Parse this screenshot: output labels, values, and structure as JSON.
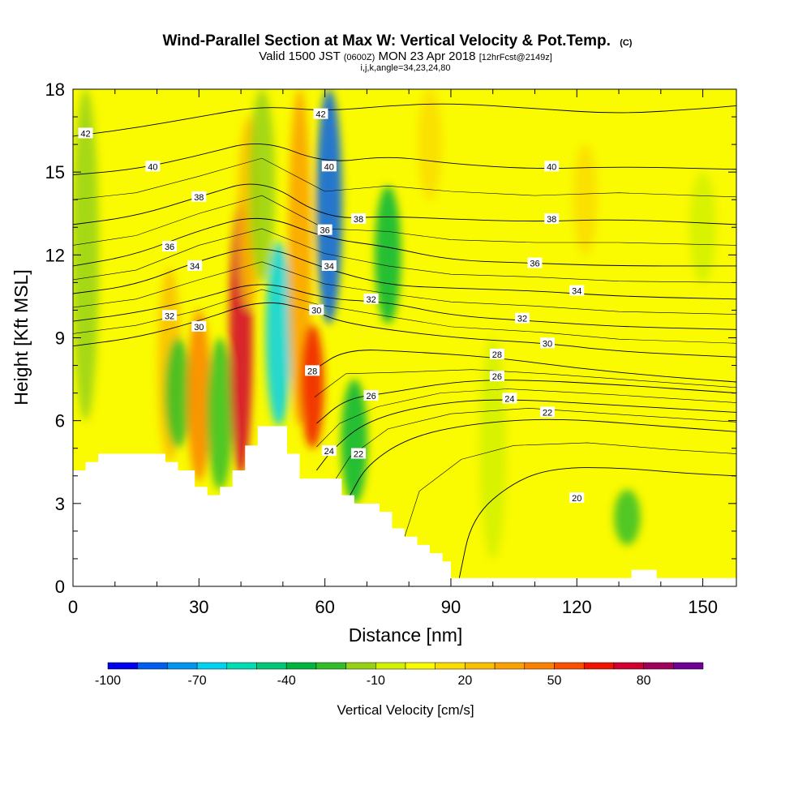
{
  "header": {
    "title": "Wind-Parallel Section at Max W: Vertical Velocity & Pot.Temp.",
    "copyright": "(C)",
    "valid_prefix": "Valid 1500 JST",
    "valid_utc": "(0600Z)",
    "valid_date": "MON 23 Apr 2018",
    "forecast": "[12hrFcst@2149z]",
    "indices": "i,j,k,angle=34,23,24,80"
  },
  "chart_data": {
    "type": "heatmap",
    "xlabel": "Distance [nm]",
    "ylabel": "Height [Kft MSL]",
    "xlim": [
      0,
      158
    ],
    "ylim": [
      0,
      18
    ],
    "x_ticks": [
      0,
      30,
      60,
      90,
      120,
      150
    ],
    "y_ticks": [
      0,
      3,
      6,
      9,
      12,
      15,
      18
    ],
    "colorbar": {
      "label": "Vertical Velocity [cm/s]",
      "tick_labels": [
        "-100",
        "-70",
        "-40",
        "-10",
        "20",
        "50",
        "80"
      ],
      "tick_values": [
        -100,
        -70,
        -40,
        -10,
        20,
        50,
        80
      ],
      "bins": [
        {
          "min": -100,
          "max": -90,
          "color": "#0000ee"
        },
        {
          "min": -90,
          "max": -80,
          "color": "#005ff0"
        },
        {
          "min": -80,
          "max": -70,
          "color": "#0096f0"
        },
        {
          "min": -70,
          "max": -60,
          "color": "#00d2f0"
        },
        {
          "min": -60,
          "max": -50,
          "color": "#00dcb4"
        },
        {
          "min": -50,
          "max": -40,
          "color": "#00c878"
        },
        {
          "min": -40,
          "max": -30,
          "color": "#00b43c"
        },
        {
          "min": -30,
          "max": -20,
          "color": "#32be28"
        },
        {
          "min": -20,
          "max": -10,
          "color": "#96d214"
        },
        {
          "min": -10,
          "max": 0,
          "color": "#d2f000"
        },
        {
          "min": 0,
          "max": 10,
          "color": "#fafa00"
        },
        {
          "min": 10,
          "max": 20,
          "color": "#fadc00"
        },
        {
          "min": 20,
          "max": 30,
          "color": "#fabe00"
        },
        {
          "min": 30,
          "max": 40,
          "color": "#faa000"
        },
        {
          "min": 40,
          "max": 50,
          "color": "#fa8200"
        },
        {
          "min": 50,
          "max": 60,
          "color": "#fa5000"
        },
        {
          "min": 60,
          "max": 70,
          "color": "#f01400"
        },
        {
          "min": 70,
          "max": 80,
          "color": "#d20032"
        },
        {
          "min": 80,
          "max": 90,
          "color": "#a0005a"
        },
        {
          "min": 90,
          "max": 100,
          "color": "#6e0096"
        }
      ]
    },
    "velocity_features": [
      {
        "x": 3,
        "y_min": 6.0,
        "y_max": 18,
        "value": -20
      },
      {
        "x": 23,
        "y_min": 4.5,
        "y_max": 11.5,
        "value": 25
      },
      {
        "x": 25,
        "y_min": 5.0,
        "y_max": 9.0,
        "value": -25
      },
      {
        "x": 30,
        "y_min": 3.8,
        "y_max": 10.0,
        "value": 45
      },
      {
        "x": 35,
        "y_min": 3.5,
        "y_max": 9.0,
        "value": -25
      },
      {
        "x": 40,
        "y_min": 4.0,
        "y_max": 14.0,
        "value": 75
      },
      {
        "x": 42,
        "y_min": 10.0,
        "y_max": 17.0,
        "value": 25
      },
      {
        "x": 45,
        "y_min": 11.0,
        "y_max": 18,
        "value": -15
      },
      {
        "x": 49,
        "y_min": 5.8,
        "y_max": 12.5,
        "value": -65
      },
      {
        "x": 54,
        "y_min": 5.8,
        "y_max": 18,
        "value": 35
      },
      {
        "x": 57,
        "y_min": 5.0,
        "y_max": 9.5,
        "value": 65
      },
      {
        "x": 61,
        "y_min": 9.5,
        "y_max": 18,
        "value": -90
      },
      {
        "x": 67,
        "y_min": 3.0,
        "y_max": 7.5,
        "value": -35
      },
      {
        "x": 75,
        "y_min": 9.5,
        "y_max": 14.5,
        "value": -35
      },
      {
        "x": 85,
        "y_min": 14.0,
        "y_max": 18,
        "value": 15
      },
      {
        "x": 100,
        "y_min": 1.0,
        "y_max": 9.0,
        "value": -5
      },
      {
        "x": 122,
        "y_min": 12.0,
        "y_max": 16.0,
        "value": 15
      },
      {
        "x": 132,
        "y_min": 1.5,
        "y_max": 3.5,
        "value": -25
      },
      {
        "x": 150,
        "y_min": 11.0,
        "y_max": 15.0,
        "value": -8
      }
    ],
    "terrain": [
      {
        "x": 0,
        "height": 4.2
      },
      {
        "x": 3,
        "height": 4.2
      },
      {
        "x": 3,
        "height": 4.5
      },
      {
        "x": 6,
        "height": 4.5
      },
      {
        "x": 6,
        "height": 4.8
      },
      {
        "x": 22,
        "height": 4.8
      },
      {
        "x": 22,
        "height": 4.5
      },
      {
        "x": 25,
        "height": 4.5
      },
      {
        "x": 25,
        "height": 4.2
      },
      {
        "x": 29,
        "height": 4.2
      },
      {
        "x": 29,
        "height": 3.6
      },
      {
        "x": 32,
        "height": 3.6
      },
      {
        "x": 32,
        "height": 3.3
      },
      {
        "x": 35,
        "height": 3.3
      },
      {
        "x": 35,
        "height": 3.6
      },
      {
        "x": 38,
        "height": 3.6
      },
      {
        "x": 38,
        "height": 4.2
      },
      {
        "x": 41,
        "height": 4.2
      },
      {
        "x": 41,
        "height": 5.1
      },
      {
        "x": 44,
        "height": 5.1
      },
      {
        "x": 44,
        "height": 5.8
      },
      {
        "x": 51,
        "height": 5.8
      },
      {
        "x": 51,
        "height": 4.8
      },
      {
        "x": 54,
        "height": 4.8
      },
      {
        "x": 54,
        "height": 3.9
      },
      {
        "x": 64,
        "height": 3.9
      },
      {
        "x": 64,
        "height": 3.3
      },
      {
        "x": 67,
        "height": 3.3
      },
      {
        "x": 67,
        "height": 3.0
      },
      {
        "x": 73,
        "height": 3.0
      },
      {
        "x": 73,
        "height": 2.7
      },
      {
        "x": 76,
        "height": 2.7
      },
      {
        "x": 76,
        "height": 2.1
      },
      {
        "x": 79,
        "height": 2.1
      },
      {
        "x": 79,
        "height": 1.8
      },
      {
        "x": 82,
        "height": 1.8
      },
      {
        "x": 82,
        "height": 1.5
      },
      {
        "x": 85,
        "height": 1.5
      },
      {
        "x": 85,
        "height": 1.2
      },
      {
        "x": 88,
        "height": 1.2
      },
      {
        "x": 88,
        "height": 0.9
      },
      {
        "x": 90,
        "height": 0.9
      },
      {
        "x": 90,
        "height": 0.3
      },
      {
        "x": 133,
        "height": 0.3
      },
      {
        "x": 133,
        "height": 0.6
      },
      {
        "x": 139,
        "height": 0.6
      },
      {
        "x": 139,
        "height": 0.3
      },
      {
        "x": 158,
        "height": 0.3
      }
    ],
    "theta_contours": [
      {
        "level": 42,
        "points": [
          [
            0,
            16.3
          ],
          [
            15,
            16.6
          ],
          [
            30,
            17.0
          ],
          [
            45,
            17.4
          ],
          [
            60,
            17.2
          ],
          [
            75,
            17.4
          ],
          [
            90,
            17.5
          ],
          [
            110,
            17.3
          ],
          [
            130,
            17.1
          ],
          [
            150,
            17.3
          ],
          [
            158,
            17.4
          ]
        ]
      },
      {
        "level": 40,
        "points": [
          [
            0,
            14.9
          ],
          [
            15,
            15.1
          ],
          [
            30,
            15.6
          ],
          [
            45,
            16.2
          ],
          [
            60,
            15.3
          ],
          [
            75,
            15.6
          ],
          [
            90,
            15.3
          ],
          [
            110,
            15.1
          ],
          [
            130,
            15.2
          ],
          [
            158,
            15.1
          ]
        ]
      },
      {
        "level": 38,
        "points": [
          [
            0,
            13.1
          ],
          [
            15,
            13.4
          ],
          [
            30,
            14.1
          ],
          [
            45,
            14.8
          ],
          [
            60,
            13.3
          ],
          [
            75,
            13.4
          ],
          [
            90,
            13.3
          ],
          [
            110,
            13.2
          ],
          [
            130,
            13.3
          ],
          [
            158,
            13.1
          ]
        ]
      },
      {
        "level": 36,
        "points": [
          [
            0,
            11.6
          ],
          [
            15,
            12.0
          ],
          [
            30,
            12.9
          ],
          [
            45,
            13.5
          ],
          [
            60,
            12.6
          ],
          [
            75,
            12.3
          ],
          [
            90,
            11.8
          ],
          [
            110,
            11.7
          ],
          [
            130,
            11.6
          ],
          [
            158,
            11.6
          ]
        ]
      },
      {
        "level": 34,
        "points": [
          [
            0,
            10.6
          ],
          [
            15,
            10.9
          ],
          [
            30,
            11.8
          ],
          [
            45,
            12.4
          ],
          [
            60,
            11.5
          ],
          [
            75,
            10.9
          ],
          [
            90,
            10.8
          ],
          [
            110,
            10.7
          ],
          [
            130,
            10.5
          ],
          [
            158,
            10.4
          ]
        ]
      },
      {
        "level": 32,
        "points": [
          [
            0,
            9.6
          ],
          [
            15,
            9.9
          ],
          [
            30,
            10.4
          ],
          [
            45,
            11.1
          ],
          [
            60,
            10.4
          ],
          [
            75,
            10.3
          ],
          [
            90,
            9.8
          ],
          [
            110,
            9.6
          ],
          [
            130,
            9.4
          ],
          [
            158,
            9.3
          ]
        ]
      },
      {
        "level": 30,
        "points": [
          [
            0,
            8.7
          ],
          [
            15,
            9.0
          ],
          [
            30,
            9.6
          ],
          [
            45,
            10.4
          ],
          [
            57,
            10.0
          ],
          [
            65,
            9.5
          ],
          [
            90,
            9.0
          ],
          [
            113,
            8.8
          ],
          [
            130,
            8.5
          ],
          [
            158,
            8.3
          ]
        ]
      },
      {
        "level": 28,
        "points": [
          [
            57,
            7.8
          ],
          [
            65,
            8.6
          ],
          [
            80,
            8.5
          ],
          [
            100,
            8.3
          ],
          [
            120,
            7.9
          ],
          [
            140,
            7.6
          ],
          [
            158,
            7.4
          ]
        ]
      },
      {
        "level": 26,
        "points": [
          [
            58,
            5.9
          ],
          [
            65,
            6.8
          ],
          [
            75,
            7.0
          ],
          [
            90,
            7.4
          ],
          [
            105,
            7.5
          ],
          [
            130,
            7.3
          ],
          [
            158,
            7.0
          ]
        ]
      },
      {
        "level": 24,
        "points": [
          [
            58,
            4.2
          ],
          [
            62,
            5.0
          ],
          [
            70,
            6.0
          ],
          [
            85,
            6.6
          ],
          [
            102,
            6.8
          ],
          [
            125,
            6.6
          ],
          [
            158,
            6.3
          ]
        ]
      },
      {
        "level": 22,
        "points": [
          [
            66,
            3.3
          ],
          [
            70,
            4.4
          ],
          [
            80,
            5.4
          ],
          [
            95,
            5.9
          ],
          [
            115,
            6.1
          ],
          [
            140,
            5.8
          ],
          [
            158,
            5.6
          ]
        ]
      },
      {
        "level": 20,
        "points": [
          [
            92,
            0.3
          ],
          [
            95,
            2.5
          ],
          [
            105,
            3.8
          ],
          [
            115,
            4.3
          ],
          [
            130,
            4.3
          ],
          [
            145,
            4.1
          ],
          [
            158,
            4.0
          ]
        ]
      }
    ],
    "contour_labels": [
      {
        "text": "42",
        "x": 3,
        "y": 16.4
      },
      {
        "text": "40",
        "x": 19,
        "y": 15.2
      },
      {
        "text": "38",
        "x": 30,
        "y": 14.1
      },
      {
        "text": "36",
        "x": 23,
        "y": 12.3
      },
      {
        "text": "34",
        "x": 29,
        "y": 11.6
      },
      {
        "text": "32",
        "x": 23,
        "y": 9.8
      },
      {
        "text": "30",
        "x": 30,
        "y": 9.4
      },
      {
        "text": "42",
        "x": 59,
        "y": 17.1
      },
      {
        "text": "40",
        "x": 61,
        "y": 15.2
      },
      {
        "text": "38",
        "x": 68,
        "y": 13.3
      },
      {
        "text": "36",
        "x": 60,
        "y": 12.9
      },
      {
        "text": "34",
        "x": 61,
        "y": 11.6
      },
      {
        "text": "32",
        "x": 71,
        "y": 10.4
      },
      {
        "text": "30",
        "x": 58,
        "y": 10.0
      },
      {
        "text": "28",
        "x": 57,
        "y": 7.8
      },
      {
        "text": "26",
        "x": 71,
        "y": 6.9
      },
      {
        "text": "24",
        "x": 61,
        "y": 4.9
      },
      {
        "text": "22",
        "x": 68,
        "y": 4.8
      },
      {
        "text": "40",
        "x": 114,
        "y": 15.2
      },
      {
        "text": "38",
        "x": 114,
        "y": 13.3
      },
      {
        "text": "36",
        "x": 110,
        "y": 11.7
      },
      {
        "text": "34",
        "x": 120,
        "y": 10.7
      },
      {
        "text": "32",
        "x": 107,
        "y": 9.7
      },
      {
        "text": "30",
        "x": 113,
        "y": 8.8
      },
      {
        "text": "28",
        "x": 101,
        "y": 8.4
      },
      {
        "text": "26",
        "x": 101,
        "y": 7.6
      },
      {
        "text": "24",
        "x": 104,
        "y": 6.8
      },
      {
        "text": "22",
        "x": 113,
        "y": 6.3
      },
      {
        "text": "20",
        "x": 120,
        "y": 3.2
      }
    ]
  }
}
